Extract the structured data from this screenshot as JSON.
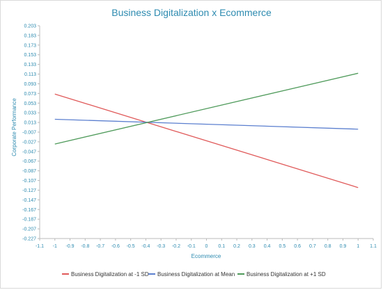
{
  "chart_data": {
    "type": "line",
    "title": "Business Digitalization x Ecommerce",
    "xlabel": "Ecommerce",
    "ylabel": "Corporate Performance",
    "xlim": [
      -1.1,
      1.1
    ],
    "ylim": [
      -0.227,
      0.203
    ],
    "x_ticks": [
      "-1.1",
      "-1",
      "-0.9",
      "-0.8",
      "-0.7",
      "-0.6",
      "-0.5",
      "-0.4",
      "-0.3",
      "-0.2",
      "-0.1",
      "0",
      "0.1",
      "0.2",
      "0.3",
      "0.4",
      "0.5",
      "0.6",
      "0.7",
      "0.8",
      "0.9",
      "1",
      "1.1"
    ],
    "y_ticks": [
      "0.203",
      "0.183",
      "0.173",
      "0.153",
      "0.133",
      "0.113",
      "0.093",
      "0.073",
      "0.053",
      "0.033",
      "0.013",
      "-0.007",
      "-0.027",
      "-0.047",
      "-0.067",
      "-0.087",
      "-0.107",
      "-0.127",
      "-0.147",
      "-0.167",
      "-0.187",
      "-0.207",
      "-0.227"
    ],
    "legend_position": "bottom",
    "grid": false,
    "series": [
      {
        "name": "Business Digitalization at -1 SD",
        "color": "#e05a5a",
        "x": [
          -1,
          1
        ],
        "y": [
          0.065,
          -0.124
        ]
      },
      {
        "name": "Business Digitalization at Mean",
        "color": "#5b7fcf",
        "x": [
          -1,
          1
        ],
        "y": [
          0.014,
          -0.006
        ]
      },
      {
        "name": "Business Digitalization at +1 SD",
        "color": "#4e9a5a",
        "x": [
          -1,
          1
        ],
        "y": [
          -0.036,
          0.107
        ]
      }
    ]
  }
}
